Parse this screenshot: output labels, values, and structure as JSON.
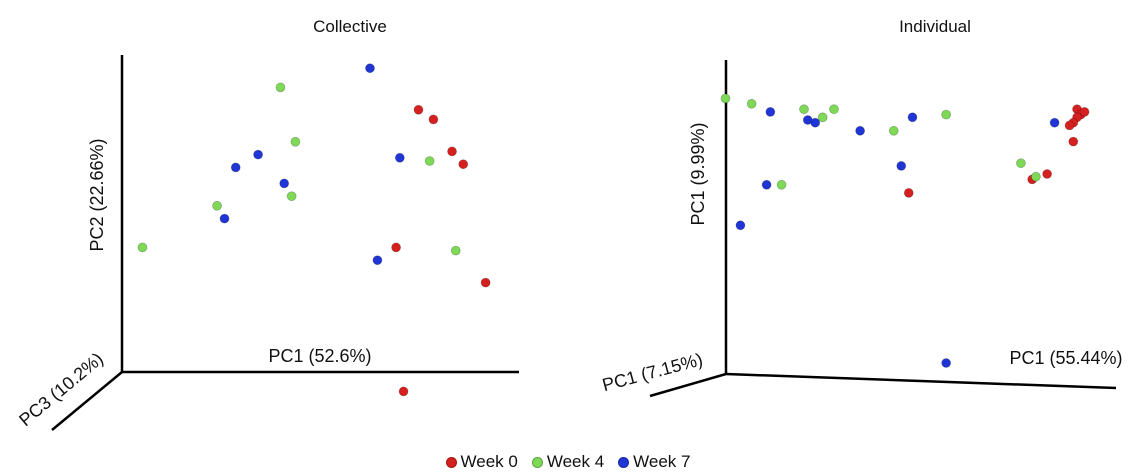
{
  "colors": {
    "Week 0": "#d61f1f",
    "Week 4": "#7ed957",
    "Week 7": "#2035d6",
    "axis": "#000000"
  },
  "legend": [
    "Week 0",
    "Week 4",
    "Week 7"
  ],
  "chart_data": [
    {
      "type": "scatter",
      "title": "Collective",
      "xlabel": "PC1 (52.6%)",
      "ylabel": "PC2 (22.66%)",
      "zlabel": "PC3 (10.2%)",
      "projection": "3d",
      "xlim": [
        0,
        100
      ],
      "ylim": [
        0,
        100
      ],
      "series": [
        {
          "name": "Week 0",
          "points": [
            {
              "x": 76,
              "y": 86
            },
            {
              "x": 80,
              "y": 83
            },
            {
              "x": 85,
              "y": 73
            },
            {
              "x": 88,
              "y": 69
            },
            {
              "x": 70,
              "y": 43
            },
            {
              "x": 94,
              "y": 32
            },
            {
              "x": 72,
              "y": -2
            }
          ]
        },
        {
          "name": "Week 4",
          "points": [
            {
              "x": 39,
              "y": 93
            },
            {
              "x": 43,
              "y": 76
            },
            {
              "x": 79,
              "y": 70
            },
            {
              "x": 42,
              "y": 59
            },
            {
              "x": 22,
              "y": 56
            },
            {
              "x": 2,
              "y": 43
            },
            {
              "x": 86,
              "y": 42
            }
          ]
        },
        {
          "name": "Week 7",
          "points": [
            {
              "x": 63,
              "y": 99
            },
            {
              "x": 33,
              "y": 72
            },
            {
              "x": 27,
              "y": 68
            },
            {
              "x": 71,
              "y": 71
            },
            {
              "x": 40,
              "y": 63
            },
            {
              "x": 24,
              "y": 52
            },
            {
              "x": 65,
              "y": 39
            }
          ]
        }
      ]
    },
    {
      "type": "scatter",
      "title": "Individual",
      "xlabel": "PC1 (55.44%)",
      "ylabel": "PC1 (9.99%)",
      "zlabel": "PC1 (7.15%)",
      "projection": "3d",
      "xlim": [
        0,
        100
      ],
      "ylim": [
        0,
        100
      ],
      "series": [
        {
          "name": "Week 0",
          "points": [
            {
              "x": 96,
              "y": 94
            },
            {
              "x": 97,
              "y": 92
            },
            {
              "x": 98,
              "y": 93
            },
            {
              "x": 96,
              "y": 91
            },
            {
              "x": 95,
              "y": 89
            },
            {
              "x": 94,
              "y": 88
            },
            {
              "x": 95,
              "y": 82
            },
            {
              "x": 88,
              "y": 70
            },
            {
              "x": 84,
              "y": 68
            },
            {
              "x": 51,
              "y": 63
            }
          ]
        },
        {
          "name": "Week 4",
          "points": [
            {
              "x": 2,
              "y": 98
            },
            {
              "x": 9,
              "y": 96
            },
            {
              "x": 23,
              "y": 94
            },
            {
              "x": 31,
              "y": 94
            },
            {
              "x": 28,
              "y": 91
            },
            {
              "x": 47,
              "y": 86
            },
            {
              "x": 61,
              "y": 92
            },
            {
              "x": 81,
              "y": 74
            },
            {
              "x": 85,
              "y": 69
            },
            {
              "x": 17,
              "y": 66
            }
          ]
        },
        {
          "name": "Week 7",
          "points": [
            {
              "x": 14,
              "y": 93
            },
            {
              "x": 24,
              "y": 90
            },
            {
              "x": 26,
              "y": 89
            },
            {
              "x": 38,
              "y": 86
            },
            {
              "x": 52,
              "y": 91
            },
            {
              "x": 90,
              "y": 89
            },
            {
              "x": 49,
              "y": 73
            },
            {
              "x": 13,
              "y": 66
            },
            {
              "x": 6,
              "y": 51
            },
            {
              "x": 61,
              "y": 0
            }
          ]
        }
      ]
    }
  ]
}
